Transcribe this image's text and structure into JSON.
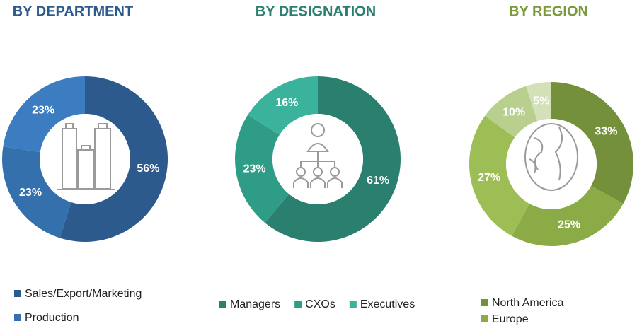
{
  "chart_data": [
    {
      "type": "pie",
      "title": "BY DEPARTMENT",
      "categories": [
        "Sales/Export/Marketing",
        "Production",
        null
      ],
      "values": [
        56,
        23,
        23
      ],
      "value_labels": [
        "56%",
        "23%",
        "23%"
      ],
      "colors": [
        "#2c5a8c",
        "#3470ab",
        "#3b7dc0"
      ]
    },
    {
      "type": "pie",
      "title": "BY DESIGNATION",
      "categories": [
        "Managers",
        "CXOs",
        "Executives"
      ],
      "values": [
        61,
        23,
        16
      ],
      "value_labels": [
        "61%",
        "23%",
        "16%"
      ],
      "colors": [
        "#2a7f6e",
        "#2f9c87",
        "#3bb39c"
      ]
    },
    {
      "type": "pie",
      "title": "BY REGION",
      "categories": [
        "North America",
        "Europe",
        null,
        null,
        null
      ],
      "values": [
        33,
        25,
        27,
        10,
        5
      ],
      "value_labels": [
        "33%",
        "25%",
        "27%",
        "10%",
        "5%"
      ],
      "colors": [
        "#74903a",
        "#8aab45",
        "#9dbd55",
        "#b8cf8e",
        "#d3e0b8"
      ]
    }
  ]
}
